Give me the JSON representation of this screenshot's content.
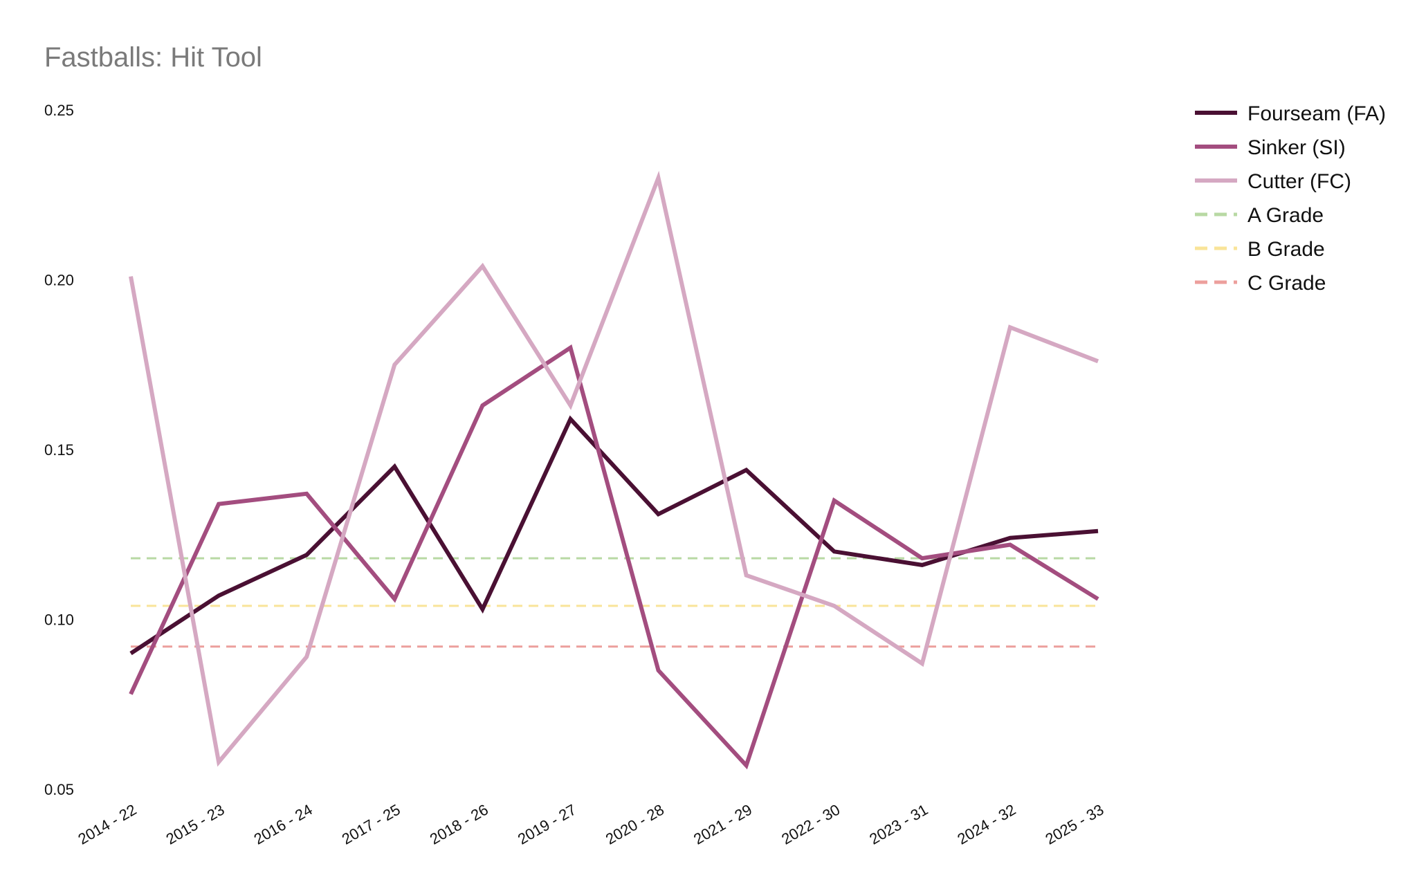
{
  "chart_data": {
    "type": "line",
    "title": "Fastballs: Hit Tool",
    "xlabel": "",
    "ylabel": "",
    "categories": [
      "2014 - 22",
      "2015 - 23",
      "2016 - 24",
      "2017 - 25",
      "2018 - 26",
      "2019 - 27",
      "2020 - 28",
      "2021 - 29",
      "2022 - 30",
      "2023 - 31",
      "2024 - 32",
      "2025 - 33"
    ],
    "y_ticks": [
      "0.05",
      "0.10",
      "0.15",
      "0.20",
      "0.25"
    ],
    "ylim": [
      0.05,
      0.25
    ],
    "grid": false,
    "legend_position": "top-right",
    "series": [
      {
        "name": "Fourseam (FA)",
        "color": "#4a1033",
        "dashed": false,
        "values": [
          0.09,
          0.107,
          0.119,
          0.145,
          0.103,
          0.159,
          0.131,
          0.144,
          0.12,
          0.116,
          0.124,
          0.126
        ]
      },
      {
        "name": "Sinker (SI)",
        "color": "#a34d7f",
        "dashed": false,
        "values": [
          0.078,
          0.134,
          0.137,
          0.106,
          0.163,
          0.18,
          0.085,
          0.057,
          0.135,
          0.118,
          0.122,
          0.106
        ]
      },
      {
        "name": "Cutter (FC)",
        "color": "#d5a8c2",
        "dashed": false,
        "values": [
          0.201,
          0.058,
          0.089,
          0.175,
          0.204,
          0.163,
          0.23,
          0.113,
          0.104,
          0.087,
          0.186,
          0.176
        ]
      }
    ],
    "reference_lines": [
      {
        "name": "A Grade",
        "value": 0.118,
        "color": "#b8d9a4"
      },
      {
        "name": "B Grade",
        "value": 0.104,
        "color": "#f9e499"
      },
      {
        "name": "C Grade",
        "value": 0.092,
        "color": "#ec9f9c"
      }
    ]
  }
}
